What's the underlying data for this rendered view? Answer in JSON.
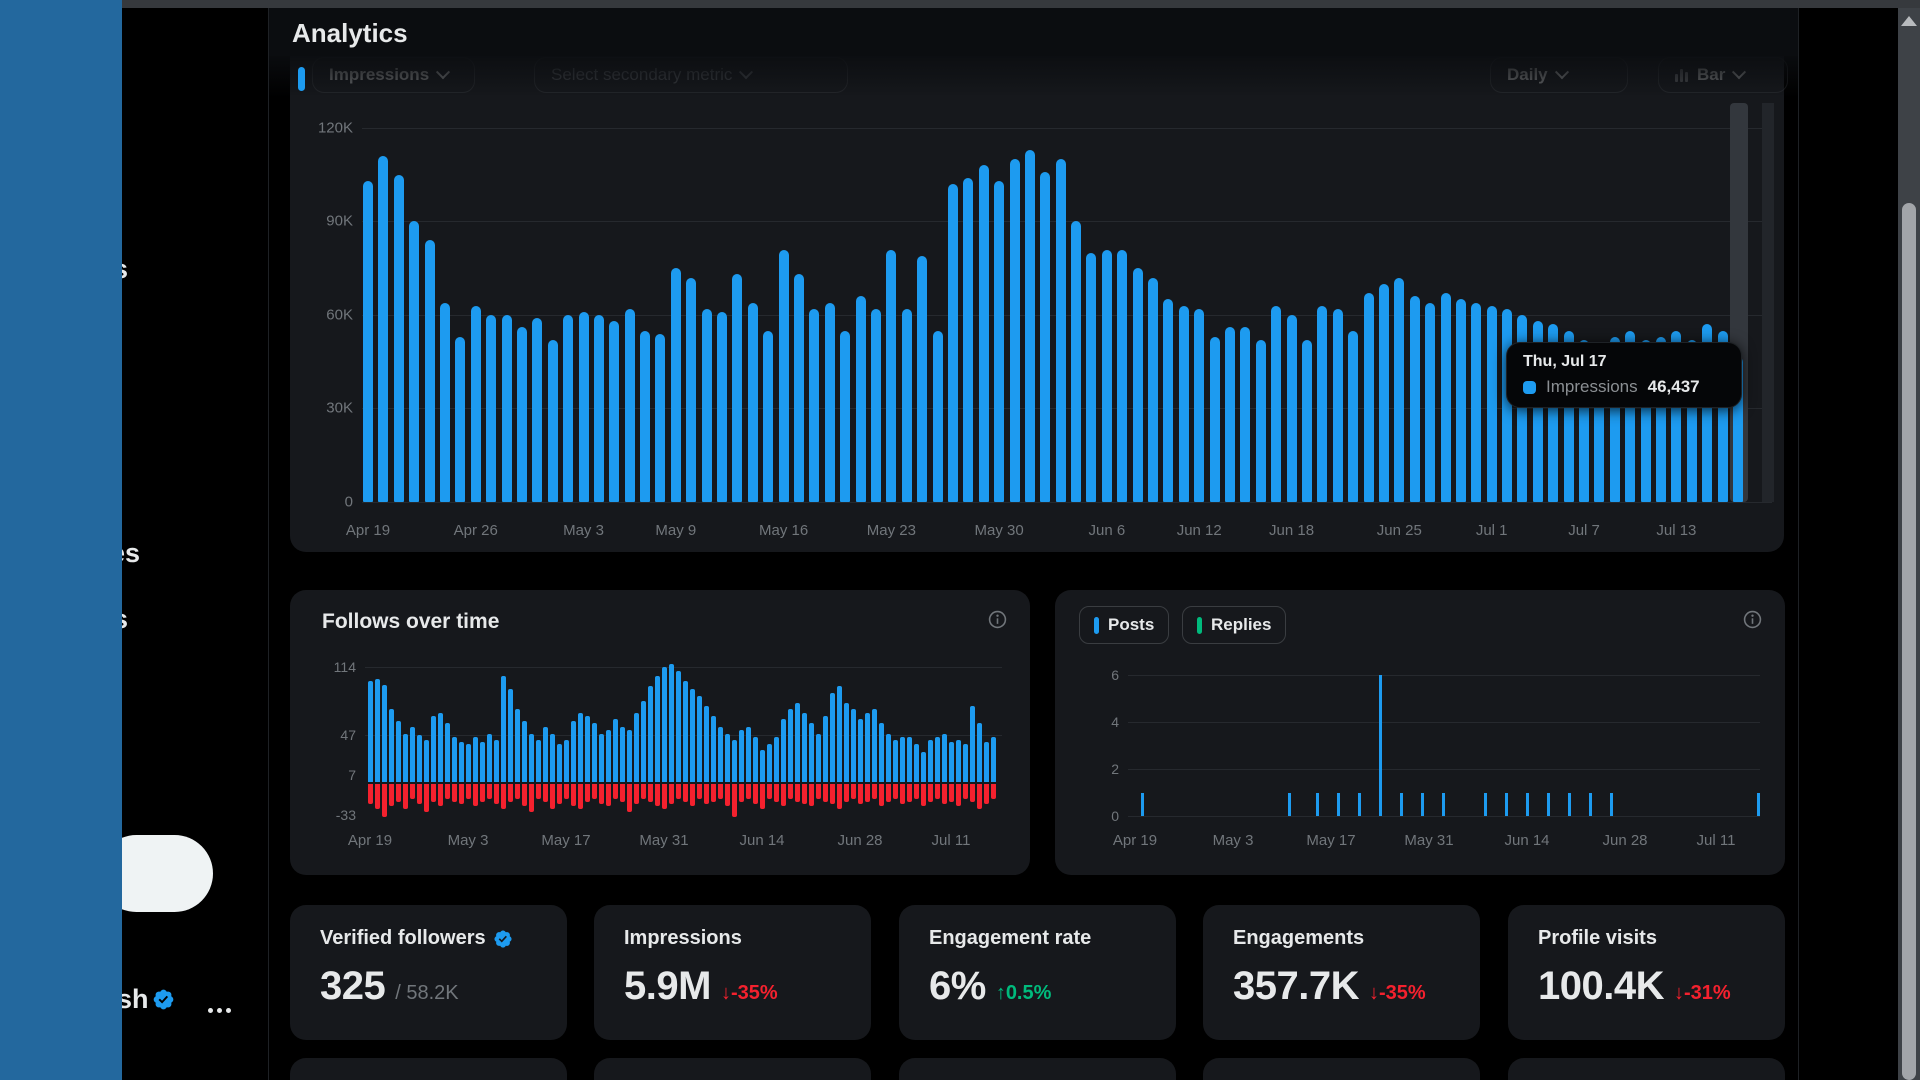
{
  "header": {
    "title": "Analytics",
    "primary_metric": "Impressions",
    "secondary_metric_placeholder": "Select secondary metric",
    "period": "Daily",
    "chart_type": "Bar"
  },
  "tooltip": {
    "date": "Thu, Jul 17",
    "series_label": "Impressions",
    "value": "46,437"
  },
  "sidebar": {
    "fragments": [
      "s",
      "es",
      "s"
    ],
    "profile_fragment": "sh",
    "more_label": "…"
  },
  "colors": {
    "accent_blue": "#1D9BF0",
    "negative_red": "#F4212E",
    "positive_green": "#00BA7C",
    "card_bg": "#16181C",
    "page_bg": "#000000",
    "text_secondary": "#71767B",
    "sidebar_overlay": "#23689E"
  },
  "stats": [
    {
      "label": "Verified followers",
      "badge": true,
      "value": "325",
      "suffix": "/ 58.2K",
      "delta": null,
      "arrow": "",
      "dir": ""
    },
    {
      "label": "Impressions",
      "badge": false,
      "value": "5.9M",
      "suffix": "",
      "delta": "-35%",
      "arrow": "↓",
      "dir": "down"
    },
    {
      "label": "Engagement rate",
      "badge": false,
      "value": "6%",
      "suffix": "",
      "delta": "0.5%",
      "arrow": "↑",
      "dir": "up"
    },
    {
      "label": "Engagements",
      "badge": false,
      "value": "357.7K",
      "suffix": "",
      "delta": "-35%",
      "arrow": "↓",
      "dir": "down"
    },
    {
      "label": "Profile visits",
      "badge": false,
      "value": "100.4K",
      "suffix": "",
      "delta": "-31%",
      "arrow": "↓",
      "dir": "down"
    }
  ],
  "chart_data": [
    {
      "type": "bar",
      "series_name": "Impressions",
      "unit": "K",
      "ylim": [
        0,
        120
      ],
      "yticks": [
        {
          "v": 120,
          "label": "120K"
        },
        {
          "v": 90,
          "label": "90K"
        },
        {
          "v": 60,
          "label": "60K"
        },
        {
          "v": 30,
          "label": "30K"
        },
        {
          "v": 0,
          "label": "0"
        }
      ],
      "xticks": [
        [
          0,
          "Apr 19"
        ],
        [
          7,
          "Apr 26"
        ],
        [
          14,
          "May 3"
        ],
        [
          20,
          "May 9"
        ],
        [
          27,
          "May 16"
        ],
        [
          34,
          "May 23"
        ],
        [
          41,
          "May 30"
        ],
        [
          48,
          "Jun 6"
        ],
        [
          54,
          "Jun 12"
        ],
        [
          60,
          "Jun 18"
        ],
        [
          67,
          "Jun 25"
        ],
        [
          73,
          "Jul 1"
        ],
        [
          79,
          "Jul 7"
        ],
        [
          85,
          "Jul 13"
        ]
      ],
      "values": [
        103,
        111,
        105,
        90,
        84,
        64,
        53,
        63,
        60,
        60,
        56,
        59,
        52,
        60,
        61,
        60,
        58,
        62,
        55,
        54,
        75,
        72,
        62,
        61,
        73,
        64,
        55,
        81,
        73,
        62,
        64,
        55,
        66,
        62,
        81,
        62,
        79,
        55,
        102,
        104,
        108,
        103,
        110,
        113,
        106,
        110,
        90,
        80,
        81,
        81,
        75,
        72,
        65,
        63,
        62,
        53,
        56,
        56,
        52,
        63,
        60,
        52,
        63,
        62,
        55,
        67,
        70,
        72,
        66,
        64,
        67,
        65,
        64,
        63,
        62,
        60,
        58,
        57,
        55,
        52,
        50,
        53,
        55,
        52,
        53,
        55,
        52,
        57,
        55,
        46.4
      ],
      "hover": {
        "day_index": 89,
        "date": "Thu, Jul 17",
        "value": 46437
      }
    },
    {
      "type": "bar",
      "title": "Follows over time",
      "ylim": [
        -33,
        114
      ],
      "yticks": [
        {
          "v": 114,
          "label": "114",
          "grid": true
        },
        {
          "v": 47,
          "label": "47",
          "grid": true
        },
        {
          "v": 7,
          "label": "7",
          "grid": false
        },
        {
          "v": -33,
          "label": "-33",
          "grid": false
        }
      ],
      "xticks": [
        [
          0,
          "Apr 19"
        ],
        [
          14,
          "May 3"
        ],
        [
          28,
          "May 17"
        ],
        [
          42,
          "May 31"
        ],
        [
          56,
          "Jun 14"
        ],
        [
          70,
          "Jun 28"
        ],
        [
          83,
          "Jul 11"
        ]
      ],
      "follows": [
        100,
        102,
        96,
        72,
        60,
        48,
        55,
        47,
        42,
        65,
        68,
        58,
        45,
        40,
        38,
        45,
        40,
        48,
        42,
        105,
        92,
        72,
        60,
        48,
        42,
        55,
        48,
        38,
        42,
        60,
        68,
        65,
        58,
        48,
        52,
        62,
        55,
        52,
        68,
        80,
        95,
        105,
        114,
        117,
        110,
        100,
        92,
        85,
        75,
        65,
        55,
        48,
        42,
        52,
        55,
        45,
        32,
        38,
        45,
        62,
        72,
        78,
        68,
        58,
        48,
        65,
        88,
        95,
        78,
        72,
        62,
        68,
        72,
        58,
        48,
        42,
        45,
        45,
        38,
        30,
        42,
        45,
        48,
        40,
        42,
        38,
        75,
        58,
        40,
        45
      ],
      "unfollows": [
        -20,
        -25,
        -33,
        -22,
        -18,
        -25,
        -15,
        -20,
        -28,
        -18,
        -22,
        -15,
        -18,
        -20,
        -15,
        -22,
        -18,
        -15,
        -20,
        -25,
        -18,
        -15,
        -22,
        -28,
        -15,
        -18,
        -25,
        -20,
        -15,
        -22,
        -25,
        -18,
        -15,
        -20,
        -22,
        -15,
        -18,
        -28,
        -20,
        -15,
        -18,
        -22,
        -25,
        -20,
        -15,
        -18,
        -22,
        -15,
        -20,
        -18,
        -15,
        -22,
        -33,
        -18,
        -15,
        -20,
        -25,
        -15,
        -18,
        -22,
        -15,
        -18,
        -20,
        -22,
        -15,
        -18,
        -20,
        -25,
        -18,
        -15,
        -20,
        -18,
        -15,
        -22,
        -18,
        -15,
        -20,
        -18,
        -15,
        -22,
        -18,
        -15,
        -20,
        -18,
        -22,
        -15,
        -18,
        -25,
        -20,
        -15
      ]
    },
    {
      "type": "bar",
      "series": [
        {
          "name": "Posts",
          "color": "#1D9BF0"
        },
        {
          "name": "Replies",
          "color": "#00BA7C"
        }
      ],
      "ylim": [
        0,
        6
      ],
      "yticks": [
        {
          "v": 6,
          "label": "6"
        },
        {
          "v": 4,
          "label": "4"
        },
        {
          "v": 2,
          "label": "2"
        },
        {
          "v": 0,
          "label": "0"
        }
      ],
      "xticks": [
        [
          0,
          "Apr 19"
        ],
        [
          14,
          "May 3"
        ],
        [
          28,
          "May 17"
        ],
        [
          42,
          "May 31"
        ],
        [
          56,
          "Jun 14"
        ],
        [
          70,
          "Jun 28"
        ],
        [
          83,
          "Jul 11"
        ]
      ],
      "posts_bars": [
        [
          1,
          1
        ],
        [
          22,
          1
        ],
        [
          26,
          1
        ],
        [
          29,
          1
        ],
        [
          32,
          1
        ],
        [
          35,
          6
        ],
        [
          38,
          1
        ],
        [
          41,
          1
        ],
        [
          44,
          1
        ],
        [
          50,
          1
        ],
        [
          53,
          1
        ],
        [
          56,
          1
        ],
        [
          59,
          1
        ],
        [
          62,
          1
        ],
        [
          65,
          1
        ],
        [
          68,
          1
        ],
        [
          89,
          1
        ]
      ],
      "replies_bars": []
    }
  ]
}
